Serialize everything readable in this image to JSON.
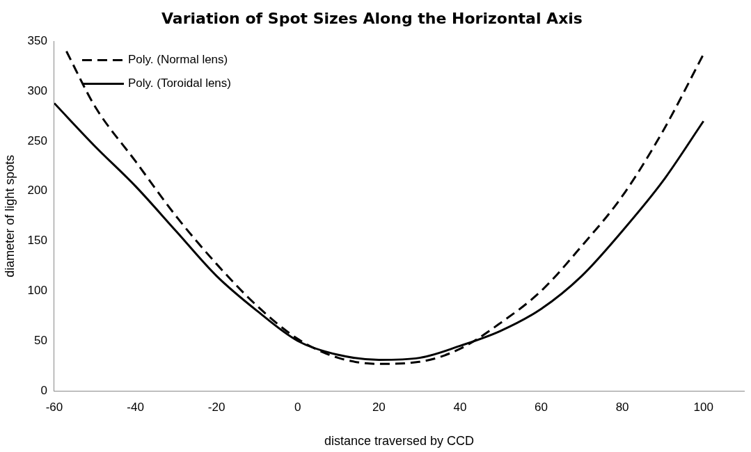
{
  "chart_data": {
    "type": "line",
    "title": "Variation of Spot Sizes Along the Horizontal Axis",
    "xlabel": "distance traversed by CCD",
    "ylabel": "diameter of light spots",
    "xlim": [
      -60,
      110
    ],
    "xticks": [
      -60,
      -40,
      -20,
      0,
      20,
      40,
      60,
      80,
      100
    ],
    "ylim": [
      0,
      350
    ],
    "yticks": [
      0,
      50,
      100,
      150,
      200,
      250,
      300,
      350
    ],
    "grid": false,
    "legend": "top left",
    "marker": "none",
    "series": [
      {
        "name": "Poly. (Normal lens)",
        "color": "#000000",
        "line_style": "dashed",
        "x": [
          -57,
          -50,
          -40,
          -30,
          -20,
          -10,
          0,
          10,
          20,
          30,
          40,
          50,
          60,
          70,
          80,
          90,
          100
        ],
        "values": [
          340,
          285,
          230,
          175,
          127,
          85,
          52,
          33,
          27,
          29,
          42,
          68,
          100,
          145,
          195,
          260,
          337
        ]
      },
      {
        "name": "Poly. (Toroidal lens)",
        "color": "#000000",
        "line_style": "solid",
        "x": [
          -60,
          -50,
          -40,
          -30,
          -20,
          -10,
          0,
          10,
          20,
          30,
          40,
          50,
          60,
          70,
          80,
          90,
          100
        ],
        "values": [
          288,
          245,
          205,
          160,
          115,
          80,
          50,
          36,
          31,
          33,
          45,
          60,
          82,
          115,
          160,
          210,
          270
        ]
      }
    ]
  }
}
